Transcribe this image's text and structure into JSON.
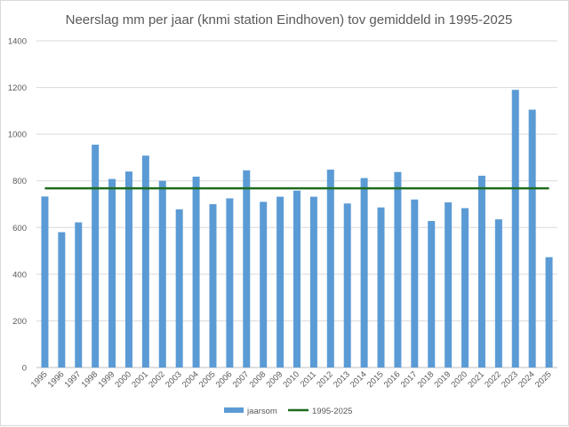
{
  "chart_data": {
    "type": "bar",
    "title": "Neerslag mm per jaar (knmi station Eindhoven) tov gemiddeld in 1995-2025",
    "categories": [
      "1995",
      "1996",
      "1997",
      "1998",
      "1999",
      "2000",
      "2001",
      "2002",
      "2003",
      "2004",
      "2005",
      "2006",
      "2007",
      "2008",
      "2009",
      "2010",
      "2011",
      "2012",
      "2013",
      "2014",
      "2015",
      "2016",
      "2017",
      "2018",
      "2019",
      "2020",
      "2021",
      "2022",
      "2023",
      "2024",
      "2025"
    ],
    "series": [
      {
        "name": "jaarsom",
        "type": "bar",
        "color": "#5b9bd5",
        "values": [
          733,
          580,
          622,
          955,
          808,
          840,
          908,
          800,
          678,
          818,
          700,
          725,
          845,
          710,
          732,
          758,
          732,
          848,
          703,
          812,
          686,
          838,
          720,
          628,
          708,
          683,
          822,
          635,
          1190,
          1105,
          473
        ]
      },
      {
        "name": "1995-2025",
        "type": "line",
        "color": "#1e6b1e",
        "value": 768
      }
    ],
    "xlabel": "",
    "ylabel": "",
    "ylim": [
      0,
      1400
    ],
    "yticks": [
      "0",
      "200",
      "400",
      "600",
      "800",
      "1000",
      "1200",
      "1400"
    ],
    "grid": true,
    "legend_position": "bottom"
  }
}
